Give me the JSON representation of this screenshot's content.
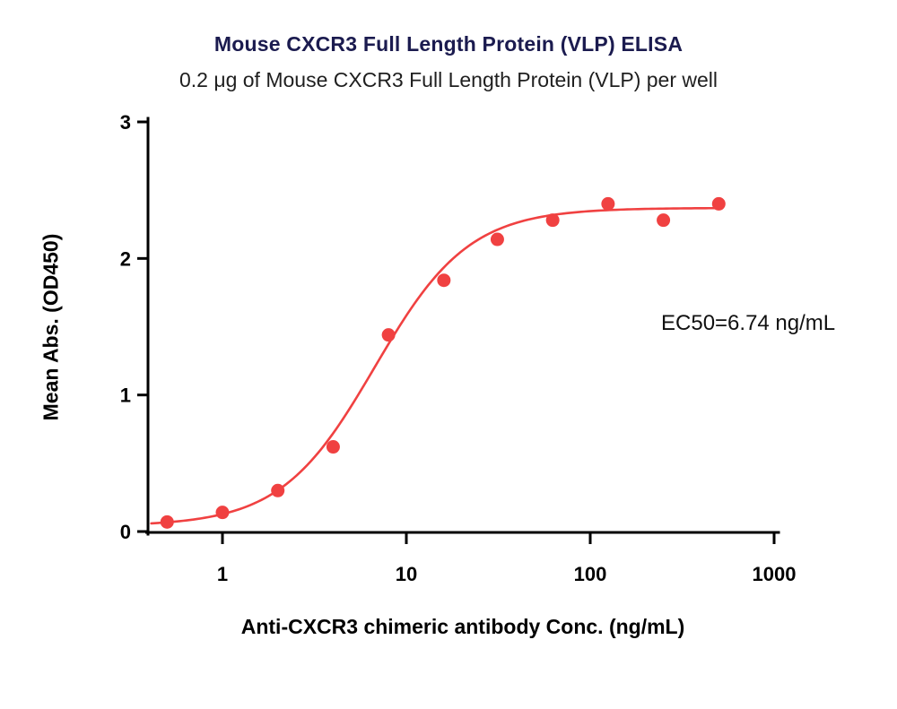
{
  "colors": {
    "curve": "#F04141",
    "point": "#F04141",
    "axis": "#000000",
    "tick_text": "#000000",
    "title_text": "#1b1b4f"
  },
  "chart_data": {
    "type": "scatter",
    "title": "Mouse CXCR3 Full Length Protein (VLP) ELISA",
    "subtitle": "0.2 μg of Mouse CXCR3 Full Length Protein (VLP) per well",
    "xlabel": "Anti-CXCR3 chimeric antibody Conc. (ng/mL)",
    "ylabel": "Mean Abs. (OD450)",
    "annotation": "EC50=6.74 ng/mL",
    "ec50_ng_ml": 6.74,
    "x_scale": "log",
    "grid": false,
    "legend": false,
    "xlim": [
      0.39,
      1030
    ],
    "ylim": [
      0,
      3
    ],
    "x_ticks": [
      1,
      10,
      100,
      1000
    ],
    "x_tick_labels": [
      "1",
      "10",
      "100",
      "1000"
    ],
    "y_ticks": [
      0,
      1,
      2,
      3
    ],
    "y_tick_labels": [
      "0",
      "1",
      "2",
      "3"
    ],
    "x": [
      0.5,
      1,
      2,
      4,
      8,
      16,
      31.25,
      62.5,
      125,
      250,
      500
    ],
    "y": [
      0.07,
      0.14,
      0.3,
      0.62,
      1.44,
      1.84,
      2.14,
      2.28,
      2.4,
      2.28,
      2.4
    ],
    "fit": {
      "model": "4PL",
      "bottom": 0.04,
      "top": 2.37,
      "ec50": 6.74,
      "hill": 1.7
    },
    "curve_x_range": [
      0.41,
      505
    ]
  }
}
